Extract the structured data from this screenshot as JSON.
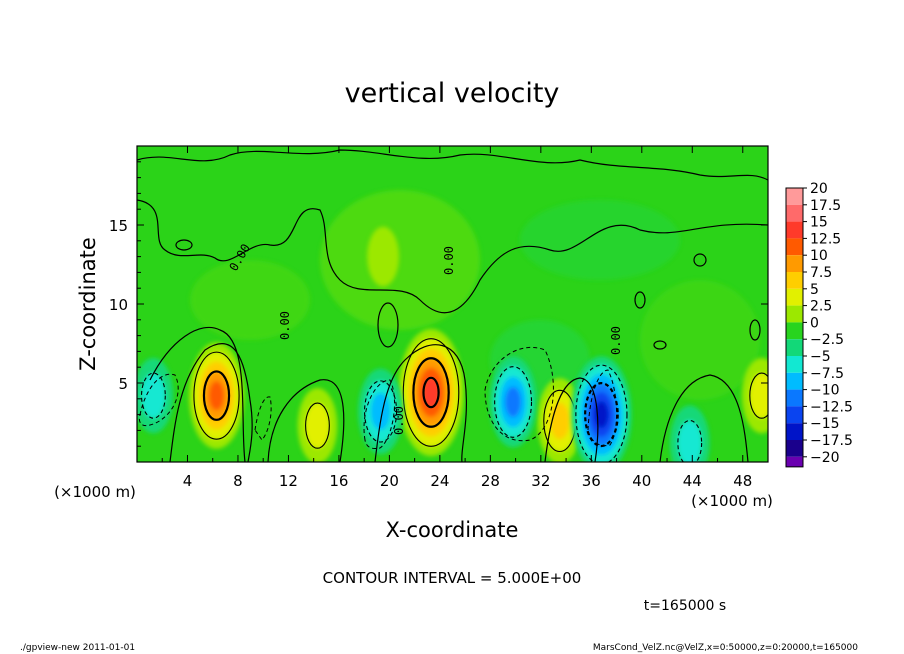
{
  "chart_data": {
    "type": "heatmap",
    "title": "vertical velocity",
    "xlabel": "X-coordinate",
    "ylabel": "Z-coordinate",
    "x_unit_left": "(×1000 m)",
    "x_unit_right": "(×1000 m)",
    "xlim": [
      0,
      50
    ],
    "ylim": [
      0,
      20
    ],
    "x_ticks": [
      "4",
      "8",
      "12",
      "16",
      "20",
      "24",
      "28",
      "32",
      "36",
      "40",
      "44",
      "48"
    ],
    "y_ticks": [
      "5",
      "10",
      "15"
    ],
    "colorbar": {
      "labels": [
        "20",
        "17.5",
        "15",
        "12.5",
        "10",
        "7.5",
        "5",
        "2.5",
        "0",
        "−2.5",
        "−5",
        "−7.5",
        "−10",
        "−12.5",
        "−15",
        "−17.5",
        "−20"
      ],
      "colors": [
        "#ff9a9a",
        "#ff6a6a",
        "#ff3a2a",
        "#ff5a00",
        "#ff9a00",
        "#ffce00",
        "#e2f000",
        "#9ce800",
        "#28d41e",
        "#12d878",
        "#12e8d2",
        "#00bcff",
        "#0a78ff",
        "#0a44f0",
        "#0014c8",
        "#1a008c",
        "#6a00b0"
      ]
    },
    "features": [
      {
        "x": 6.3,
        "z": 4.2,
        "w": 12,
        "kind": "updraft"
      },
      {
        "x": 23.3,
        "z": 4.4,
        "w": 16,
        "kind": "updraft"
      },
      {
        "x": 33.5,
        "z": 2.6,
        "w": 8,
        "kind": "updraft"
      },
      {
        "x": 14.3,
        "z": 2.3,
        "w": 6,
        "kind": "updraft"
      },
      {
        "x": 49.5,
        "z": 4.2,
        "w": 6,
        "kind": "updraft"
      },
      {
        "x": 29.8,
        "z": 3.8,
        "w": -9,
        "kind": "downdraft"
      },
      {
        "x": 36.8,
        "z": 3.0,
        "w": -14,
        "kind": "downdraft"
      },
      {
        "x": 19.3,
        "z": 3.2,
        "w": -8,
        "kind": "downdraft"
      },
      {
        "x": 1.3,
        "z": 4.2,
        "w": -6,
        "kind": "downdraft"
      },
      {
        "x": 43.8,
        "z": 1.2,
        "w": -6,
        "kind": "downdraft"
      },
      {
        "x": 19.5,
        "z": 13.0,
        "w": 3,
        "kind": "weak"
      }
    ],
    "contour_labels": [
      "0.00",
      "0.00",
      "0.00",
      "0.00",
      "0.00"
    ],
    "grid": false,
    "legend": "right colorbar"
  },
  "footer": {
    "contour_interval": "CONTOUR INTERVAL = 5.000E+00",
    "time": "t=165000 s",
    "left_note": "./gpview-new   2011-01-01",
    "right_note": "MarsCond_VelZ.nc@VelZ,x=0:50000,z=0:20000,t=165000"
  }
}
